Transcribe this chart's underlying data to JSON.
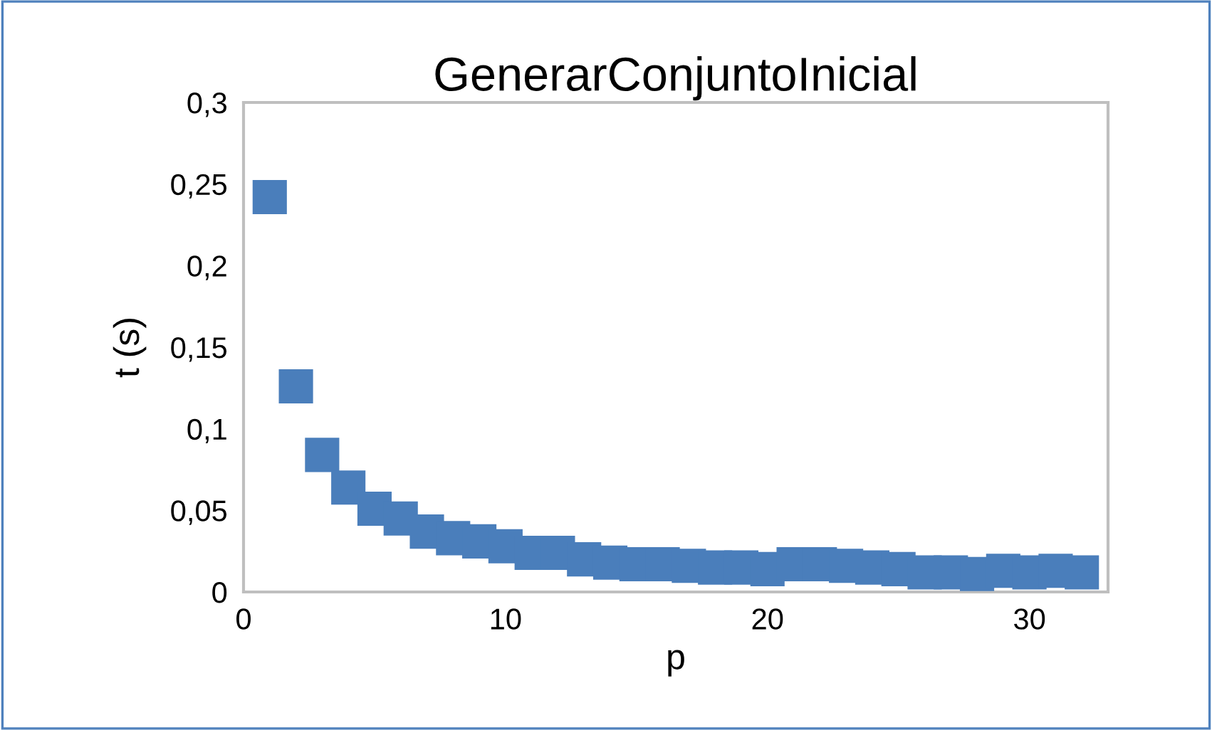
{
  "chart_data": {
    "type": "scatter",
    "title": "GenerarConjuntoInicial",
    "xlabel": "p",
    "ylabel": "t (s)",
    "x": [
      1,
      2,
      3,
      4,
      5,
      6,
      7,
      8,
      9,
      10,
      11,
      12,
      13,
      14,
      15,
      16,
      17,
      18,
      19,
      20,
      21,
      22,
      23,
      24,
      25,
      26,
      27,
      28,
      29,
      30,
      31,
      32
    ],
    "series": [
      {
        "color": "#4a7ebb",
        "values": [
          0.242,
          0.126,
          0.084,
          0.064,
          0.051,
          0.045,
          0.037,
          0.033,
          0.031,
          0.028,
          0.024,
          0.024,
          0.02,
          0.018,
          0.017,
          0.017,
          0.016,
          0.015,
          0.015,
          0.014,
          0.017,
          0.017,
          0.016,
          0.015,
          0.014,
          0.012,
          0.012,
          0.011,
          0.013,
          0.012,
          0.013,
          0.012
        ]
      }
    ],
    "marker": "square",
    "grid": false,
    "legend": false,
    "xlim": [
      0,
      33
    ],
    "xticks": [
      0,
      10,
      20,
      30
    ],
    "ylim": [
      0,
      0.3
    ],
    "yticks": [
      {
        "value": 0,
        "label": "0"
      },
      {
        "value": 0.05,
        "label": "0,05"
      },
      {
        "value": 0.1,
        "label": "0,1"
      },
      {
        "value": 0.15,
        "label": "0,15"
      },
      {
        "value": 0.2,
        "label": "0,2"
      },
      {
        "value": 0.25,
        "label": "0,25"
      },
      {
        "value": 0.3,
        "label": "0,3"
      }
    ]
  }
}
